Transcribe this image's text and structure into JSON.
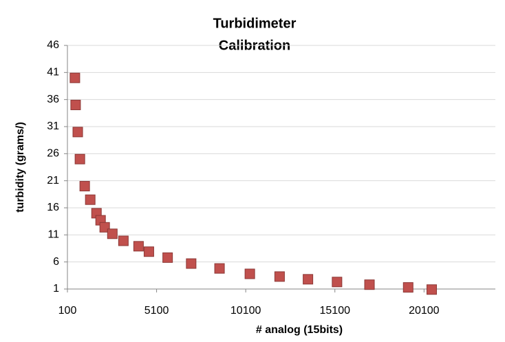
{
  "chart_data": {
    "type": "scatter",
    "title": [
      "Turbidimeter",
      "Calibration"
    ],
    "x_label": "# analog  (15bits)",
    "y_label": "turbidity  (grams/)",
    "series": [
      {
        "name": "turbidity",
        "color": "#c0504d",
        "x": [
          520,
          560,
          680,
          800,
          1070,
          1380,
          1730,
          1960,
          2190,
          2620,
          3240,
          4090,
          4670,
          5720,
          7040,
          8630,
          10330,
          12000,
          13590,
          15220,
          17040,
          19210,
          20530
        ],
        "values": [
          40,
          35,
          30,
          25,
          20,
          17.5,
          15,
          13.7,
          12.4,
          11.2,
          9.9,
          8.9,
          7.9,
          6.8,
          5.7,
          4.8,
          3.8,
          3.3,
          2.8,
          2.3,
          1.8,
          1.3,
          0.9
        ]
      }
    ],
    "xlim": [
      100,
      24100
    ],
    "xticks": [
      100,
      5100,
      10100,
      15100,
      20100
    ],
    "ylim": [
      1,
      46
    ],
    "yticks": [
      1,
      6,
      11,
      16,
      21,
      26,
      31,
      36,
      41,
      46
    ],
    "grid": true
  }
}
